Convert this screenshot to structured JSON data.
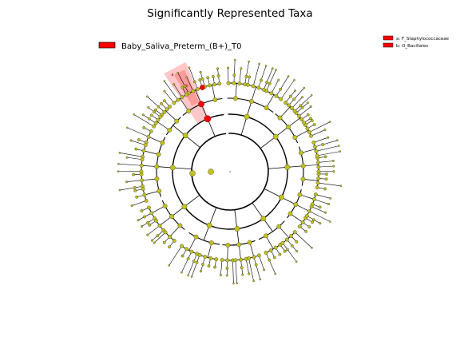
{
  "chart_data": {
    "type": "cladogram",
    "title": "Significantly Represented Taxa",
    "legend": {
      "class_label": "Baby_Saliva_Preterm_(B+)_T0",
      "class_color": "#ff0000",
      "placement": "top-left"
    },
    "taxa_legend": [
      {
        "key": "a",
        "label": "a: F_Staphylococcaceae"
      },
      {
        "key": "b",
        "label": "b: O_Bacillales"
      }
    ],
    "highlighted_clades": [
      {
        "letter": "a",
        "name": "F_Staphylococcaceae",
        "color": "#ff0000"
      },
      {
        "letter": "b",
        "name": "O_Bacillales",
        "color": "#ff0000"
      }
    ],
    "node_color": "#c2c21a",
    "highlight_color": "#ff0000"
  }
}
